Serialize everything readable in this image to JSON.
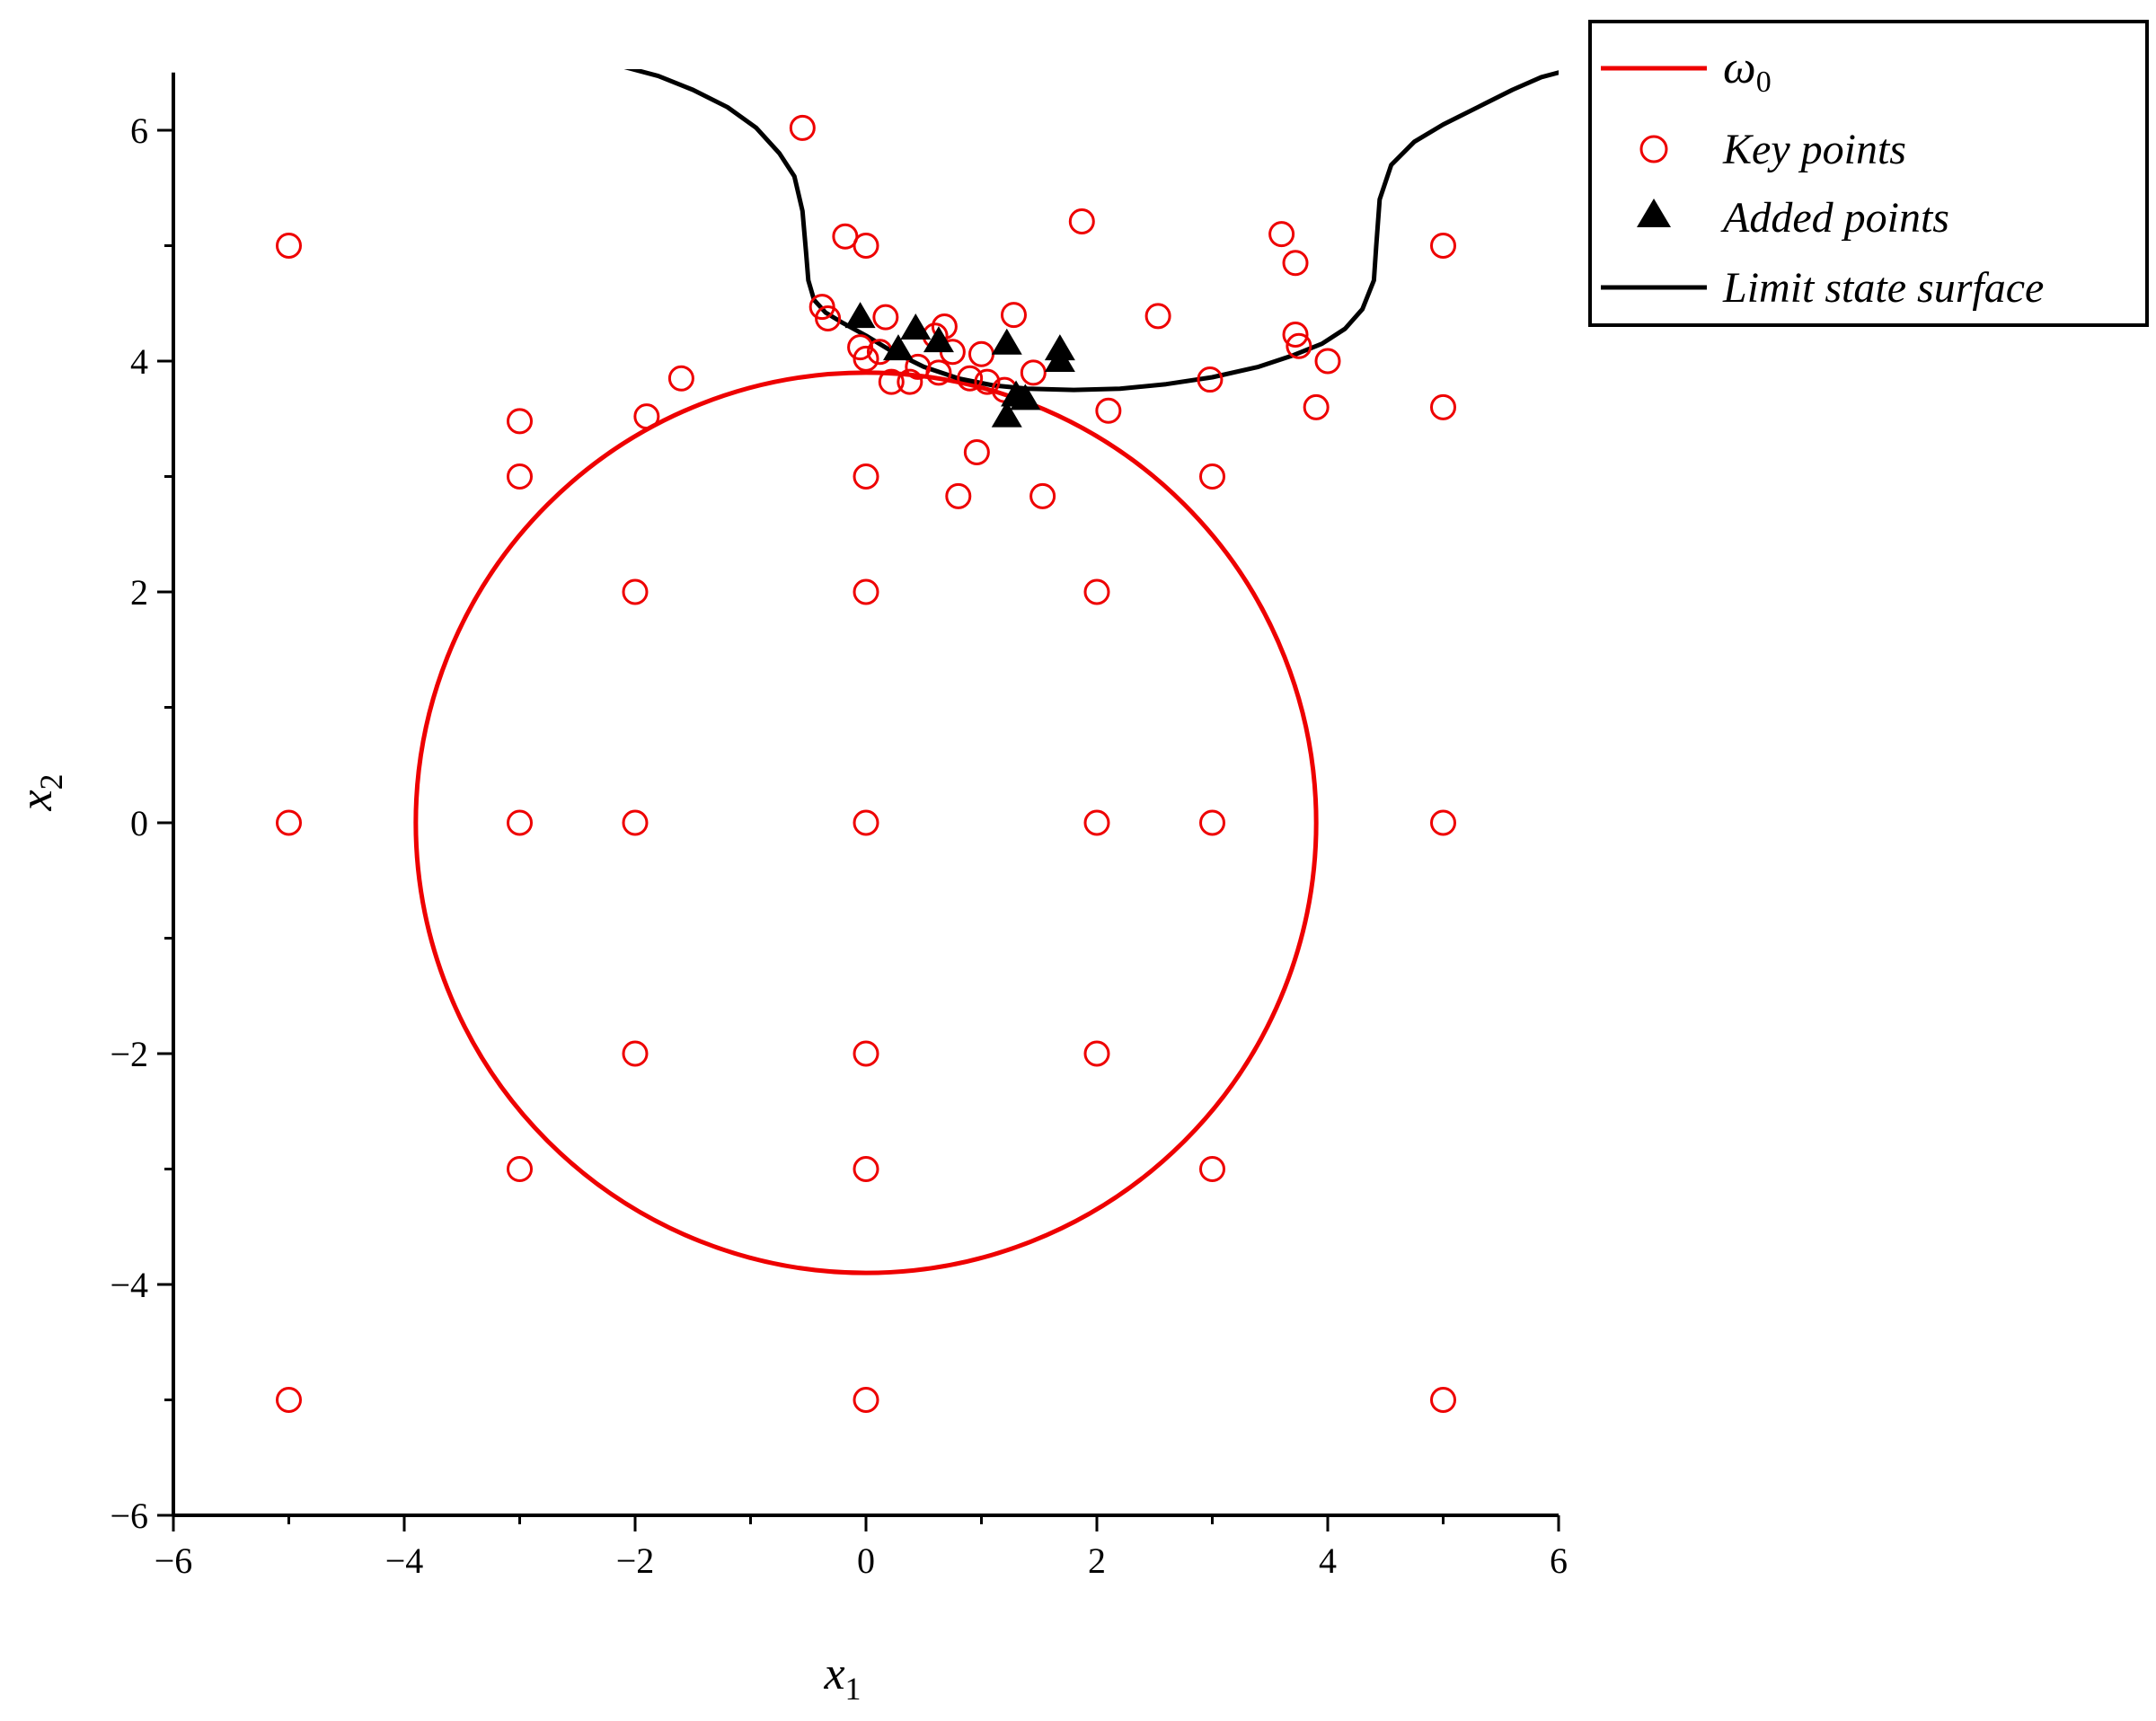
{
  "chart_data": {
    "type": "scatter",
    "title": "",
    "xlabel": "x",
    "xlabel_sub": "1",
    "ylabel": "x",
    "ylabel_sub": "2",
    "xlim": [
      -6,
      6
    ],
    "ylim": [
      -6,
      6.5
    ],
    "xticks": [
      -6,
      -4,
      -2,
      0,
      2,
      4,
      6
    ],
    "yticks": [
      -6,
      -4,
      -2,
      0,
      2,
      4,
      6
    ],
    "xtick_labels": [
      "−6",
      "−4",
      "−2",
      "0",
      "2",
      "4",
      "6"
    ],
    "ytick_labels": [
      "−6",
      "−4",
      "−2",
      "0",
      "2",
      "4",
      "6"
    ],
    "grid": false,
    "legend_position": "top-right",
    "colors": {
      "omega0": "#ee0000",
      "key_points": "#ee0000",
      "added_points": "#000000",
      "limit_state_surface": "#000000"
    },
    "series": [
      {
        "name": "ω",
        "name_sub": "0",
        "type": "line",
        "circle_center": [
          0,
          0
        ],
        "circle_radius": 3.9
      },
      {
        "name": "Key points",
        "type": "scatter",
        "marker": "open-circle",
        "points": [
          [
            -5,
            5
          ],
          [
            -5,
            0
          ],
          [
            -5,
            -5
          ],
          [
            -3,
            3.48
          ],
          [
            -3,
            3
          ],
          [
            -3,
            0
          ],
          [
            -3,
            -3
          ],
          [
            -2,
            2
          ],
          [
            -2,
            0
          ],
          [
            -2,
            -2
          ],
          [
            -1.9,
            3.52
          ],
          [
            -1.6,
            3.85
          ],
          [
            -0.55,
            6.02
          ],
          [
            -0.18,
            5.08
          ],
          [
            0,
            5
          ],
          [
            0,
            3
          ],
          [
            0,
            2
          ],
          [
            0,
            0
          ],
          [
            0,
            -2
          ],
          [
            0,
            -3
          ],
          [
            0,
            -5
          ],
          [
            -0.38,
            4.47
          ],
          [
            -0.33,
            4.37
          ],
          [
            -0.05,
            4.12
          ],
          [
            0.0,
            4.02
          ],
          [
            0.12,
            4.08
          ],
          [
            0.17,
            4.38
          ],
          [
            0.22,
            3.82
          ],
          [
            0.38,
            3.82
          ],
          [
            0.45,
            3.95
          ],
          [
            0.6,
            4.22
          ],
          [
            0.63,
            3.9
          ],
          [
            0.68,
            4.3
          ],
          [
            0.75,
            4.08
          ],
          [
            0.8,
            2.83
          ],
          [
            0.9,
            3.85
          ],
          [
            0.96,
            3.21
          ],
          [
            1.0,
            4.06
          ],
          [
            1.05,
            3.82
          ],
          [
            1.2,
            3.75
          ],
          [
            1.28,
            4.4
          ],
          [
            1.45,
            3.9
          ],
          [
            1.53,
            2.83
          ],
          [
            1.87,
            5.21
          ],
          [
            2.1,
            3.57
          ],
          [
            2,
            2
          ],
          [
            2,
            0
          ],
          [
            2,
            -2
          ],
          [
            2.53,
            4.39
          ],
          [
            2.98,
            3.84
          ],
          [
            3,
            3
          ],
          [
            3,
            0
          ],
          [
            3,
            -3
          ],
          [
            3.6,
            5.1
          ],
          [
            3.72,
            4.85
          ],
          [
            3.72,
            4.23
          ],
          [
            3.75,
            4.13
          ],
          [
            3.9,
            3.6
          ],
          [
            4,
            4
          ],
          [
            5,
            5
          ],
          [
            5,
            3.6
          ],
          [
            5,
            0
          ],
          [
            5,
            -5
          ]
        ]
      },
      {
        "name": "Added points",
        "type": "scatter",
        "marker": "filled-triangle",
        "points": [
          [
            -0.05,
            4.38
          ],
          [
            0.28,
            4.1
          ],
          [
            0.43,
            4.28
          ],
          [
            0.63,
            4.17
          ],
          [
            1.22,
            4.15
          ],
          [
            1.22,
            3.52
          ],
          [
            1.3,
            3.7
          ],
          [
            1.38,
            3.67
          ],
          [
            1.68,
            4.1
          ],
          [
            1.68,
            4.0
          ]
        ]
      },
      {
        "name": "Limit state surface",
        "type": "line",
        "points": [
          [
            -2.1,
            6.55
          ],
          [
            -1.8,
            6.47
          ],
          [
            -1.5,
            6.35
          ],
          [
            -1.2,
            6.2
          ],
          [
            -0.95,
            6.02
          ],
          [
            -0.75,
            5.8
          ],
          [
            -0.62,
            5.6
          ],
          [
            -0.55,
            5.3
          ],
          [
            -0.52,
            4.95
          ],
          [
            -0.5,
            4.7
          ],
          [
            -0.45,
            4.53
          ],
          [
            -0.35,
            4.42
          ],
          [
            -0.2,
            4.33
          ],
          [
            0.0,
            4.22
          ],
          [
            0.2,
            4.1
          ],
          [
            0.5,
            3.95
          ],
          [
            0.8,
            3.85
          ],
          [
            1.1,
            3.79
          ],
          [
            1.4,
            3.76
          ],
          [
            1.8,
            3.75
          ],
          [
            2.2,
            3.76
          ],
          [
            2.6,
            3.8
          ],
          [
            3.0,
            3.86
          ],
          [
            3.4,
            3.95
          ],
          [
            3.7,
            4.05
          ],
          [
            3.95,
            4.15
          ],
          [
            4.15,
            4.28
          ],
          [
            4.3,
            4.45
          ],
          [
            4.4,
            4.7
          ],
          [
            4.42,
            5.0
          ],
          [
            4.45,
            5.4
          ],
          [
            4.55,
            5.7
          ],
          [
            4.75,
            5.9
          ],
          [
            5.0,
            6.05
          ],
          [
            5.3,
            6.2
          ],
          [
            5.6,
            6.35
          ],
          [
            5.85,
            6.46
          ],
          [
            6.0,
            6.5
          ]
        ]
      }
    ]
  }
}
